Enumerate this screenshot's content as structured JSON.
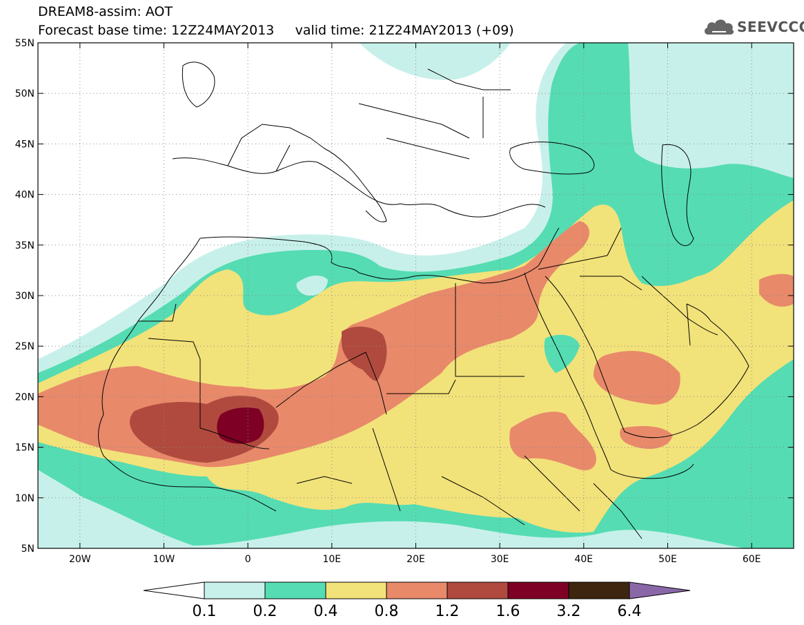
{
  "header": {
    "line1": "DREAM8-assim: AOT",
    "line2": "Forecast base time: 12Z24MAY2013     valid time: 21Z24MAY2013 (+09)"
  },
  "logo": {
    "text": "SEEVCCC",
    "icon": "cloud-icon"
  },
  "map": {
    "lon_range": [
      -25,
      65
    ],
    "lat_range": [
      5,
      55
    ],
    "lon_ticks": [
      "20W",
      "10W",
      "0",
      "10E",
      "20E",
      "30E",
      "40E",
      "50E",
      "60E"
    ],
    "lat_ticks": [
      "5N",
      "10N",
      "15N",
      "20N",
      "25N",
      "30N",
      "35N",
      "40N",
      "45N",
      "50N",
      "55N"
    ],
    "grid": true
  },
  "colorbar": {
    "labels": [
      "0.1",
      "0.2",
      "0.4",
      "0.8",
      "1.2",
      "1.6",
      "3.2",
      "6.4"
    ],
    "colors": [
      "#ffffff",
      "#c8f0ea",
      "#55dcb3",
      "#f2e27a",
      "#e8896a",
      "#b04a3e",
      "#7e0024",
      "#3d2510",
      "#8a68a8"
    ]
  },
  "palette": {
    "c01": "#c8f0ea",
    "c02": "#55dcb3",
    "c04": "#f2e27a",
    "c08": "#e8896a",
    "c12": "#b04a3e",
    "c16": "#7e0024"
  }
}
